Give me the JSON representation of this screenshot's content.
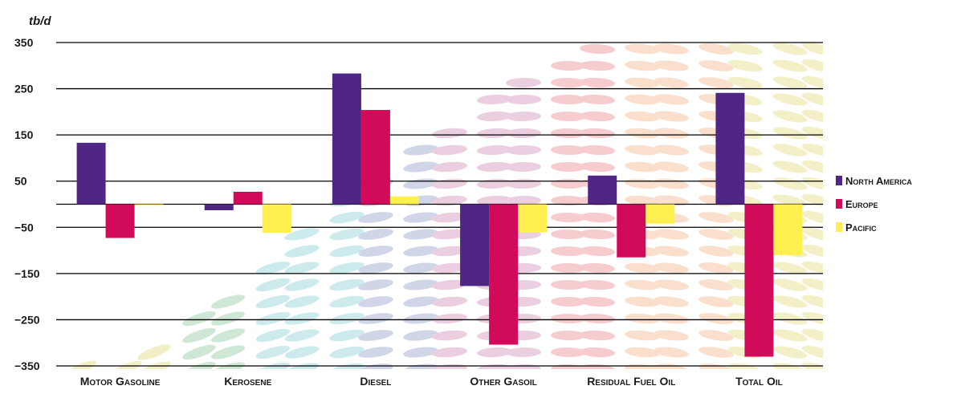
{
  "chart_data": {
    "type": "bar",
    "unit_label": "tb/d",
    "categories": [
      "Motor Gasoline",
      "Kerosene",
      "Diesel",
      "Other Gasoil",
      "Residual Fuel Oil",
      "Total Oil"
    ],
    "series": [
      {
        "name": "North America",
        "color": "#4f2683",
        "values": [
          133,
          -13,
          283,
          -177,
          62,
          241
        ]
      },
      {
        "name": "Europe",
        "color": "#d10a5a",
        "values": [
          -73,
          27,
          204,
          -304,
          -115,
          -330
        ]
      },
      {
        "name": "Pacific",
        "color": "#fff04f",
        "values": [
          -3,
          -62,
          17,
          -61,
          -42,
          -110
        ]
      }
    ],
    "y_ticks": [
      "350",
      "250",
      "150",
      "50",
      "−50",
      "−150",
      "−250",
      "−350"
    ],
    "ylim": [
      -350,
      350
    ],
    "grid": true,
    "legend_position": "right",
    "background_decoration": "faded multicolored ellipse pattern"
  }
}
